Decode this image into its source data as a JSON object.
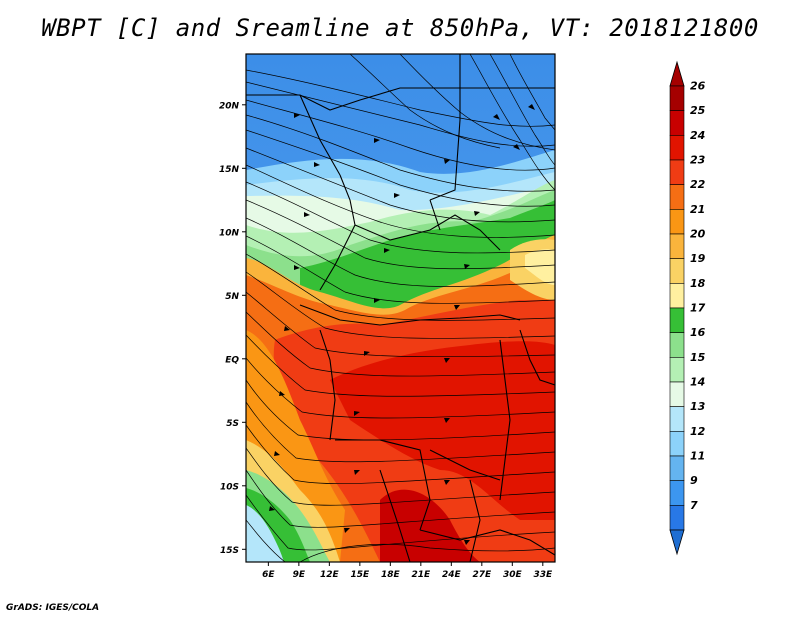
{
  "title": "WBPT [C] and Sreamline at 850hPa, VT: 2018121800",
  "credit": "GrADS: IGES/COLA",
  "map": {
    "lat_range": [
      -16,
      24
    ],
    "lon_range": [
      3.8,
      34.2
    ],
    "lat_ticks": [
      {
        "value": 20,
        "label": "20N"
      },
      {
        "value": 15,
        "label": "15N"
      },
      {
        "value": 10,
        "label": "10N"
      },
      {
        "value": 5,
        "label": "5N"
      },
      {
        "value": 0,
        "label": "EQ"
      },
      {
        "value": -5,
        "label": "5S"
      },
      {
        "value": -10,
        "label": "10S"
      },
      {
        "value": -15,
        "label": "15S"
      }
    ],
    "lon_ticks": [
      {
        "value": 6,
        "label": "6E"
      },
      {
        "value": 9,
        "label": "9E"
      },
      {
        "value": 12,
        "label": "12E"
      },
      {
        "value": 15,
        "label": "15E"
      },
      {
        "value": 18,
        "label": "18E"
      },
      {
        "value": 21,
        "label": "21E"
      },
      {
        "value": 24,
        "label": "24E"
      },
      {
        "value": 27,
        "label": "27E"
      },
      {
        "value": 30,
        "label": "30E"
      },
      {
        "value": 33,
        "label": "33E"
      }
    ]
  },
  "colorbar": {
    "levels": [
      {
        "label": "26",
        "color": "#a50000"
      },
      {
        "label": "25",
        "color": "#c80000"
      },
      {
        "label": "24",
        "color": "#e11400"
      },
      {
        "label": "23",
        "color": "#f03c14"
      },
      {
        "label": "22",
        "color": "#f56e14"
      },
      {
        "label": "21",
        "color": "#fa9614"
      },
      {
        "label": "20",
        "color": "#fab43c"
      },
      {
        "label": "19",
        "color": "#fad264"
      },
      {
        "label": "18",
        "color": "#fff0a0"
      },
      {
        "label": "17",
        "color": "#36bf36"
      },
      {
        "label": "16",
        "color": "#8ce08c"
      },
      {
        "label": "15",
        "color": "#b4f0b4"
      },
      {
        "label": "14",
        "color": "#e6fae6"
      },
      {
        "label": "13",
        "color": "#b4e6fa"
      },
      {
        "label": "12",
        "color": "#8cd2fa"
      },
      {
        "label": "11",
        "color": "#64b4f0"
      },
      {
        "label": "9",
        "color": "#3c96f0"
      },
      {
        "label": "7",
        "color": "#2878e6"
      }
    ],
    "top_color": "#a50000",
    "bottom_color": "#1e6ed2"
  }
}
